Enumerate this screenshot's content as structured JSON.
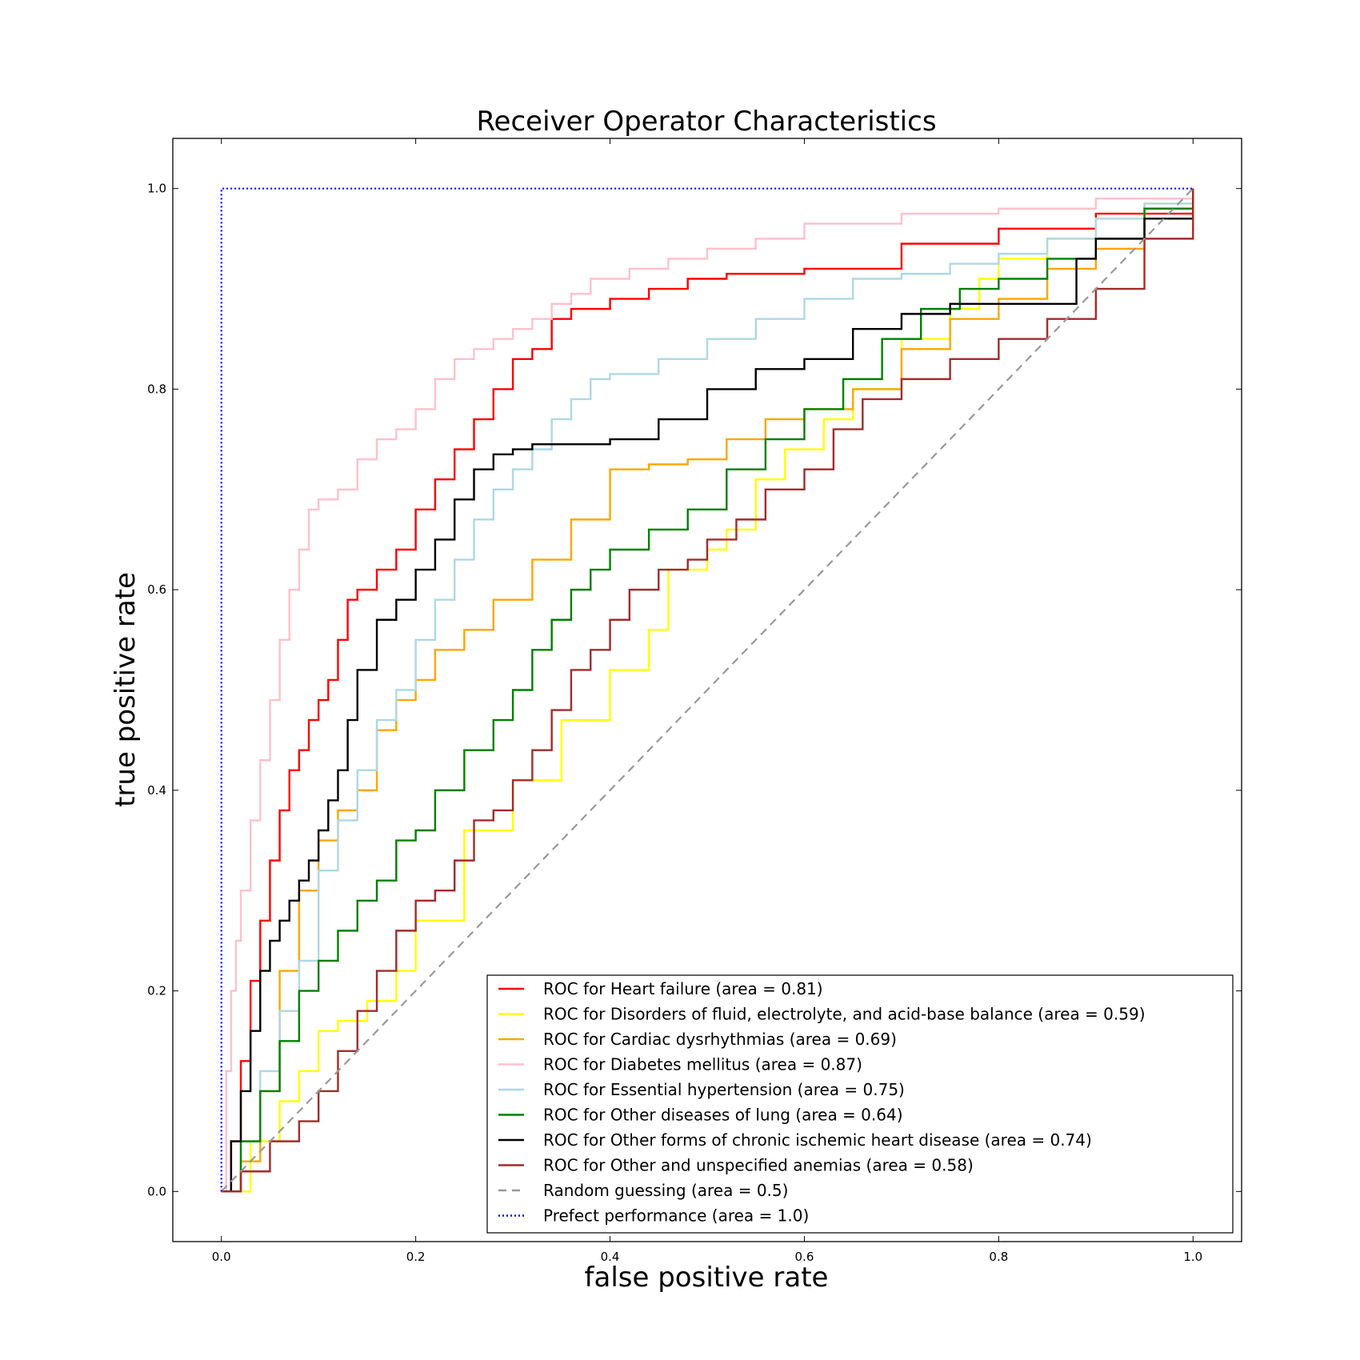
{
  "chart_data": {
    "type": "line",
    "title": "Receiver Operator Characteristics",
    "xlabel": "false positive rate",
    "ylabel": "true positive rate",
    "xlim": [
      -0.05,
      1.05
    ],
    "ylim": [
      -0.05,
      1.05
    ],
    "xticks": [
      "0.0",
      "0.2",
      "0.4",
      "0.6",
      "0.8",
      "1.0"
    ],
    "yticks": [
      "0.0",
      "0.2",
      "0.4",
      "0.6",
      "0.8",
      "1.0"
    ],
    "grid": false,
    "legend_position": "lower-right",
    "series": [
      {
        "name": "ROC for Heart failure (area = 0.81)",
        "color": "#ff0000",
        "style": "solid",
        "x": [
          0.0,
          0.01,
          0.02,
          0.03,
          0.04,
          0.05,
          0.06,
          0.07,
          0.08,
          0.09,
          0.1,
          0.11,
          0.12,
          0.13,
          0.14,
          0.16,
          0.18,
          0.2,
          0.22,
          0.24,
          0.26,
          0.28,
          0.3,
          0.32,
          0.34,
          0.36,
          0.4,
          0.44,
          0.48,
          0.52,
          0.6,
          0.7,
          0.8,
          0.9,
          1.0
        ],
        "y": [
          0.0,
          0.05,
          0.13,
          0.21,
          0.27,
          0.33,
          0.38,
          0.42,
          0.44,
          0.47,
          0.49,
          0.51,
          0.55,
          0.59,
          0.6,
          0.62,
          0.64,
          0.68,
          0.71,
          0.74,
          0.77,
          0.8,
          0.83,
          0.84,
          0.87,
          0.88,
          0.89,
          0.9,
          0.91,
          0.915,
          0.92,
          0.945,
          0.96,
          0.975,
          1.0
        ]
      },
      {
        "name": "ROC for Disorders of fluid, electrolyte, and acid-base balance (area = 0.59)",
        "color": "#ffff00",
        "style": "solid",
        "x": [
          0.0,
          0.03,
          0.06,
          0.08,
          0.1,
          0.12,
          0.15,
          0.18,
          0.2,
          0.25,
          0.3,
          0.35,
          0.4,
          0.44,
          0.46,
          0.5,
          0.52,
          0.55,
          0.58,
          0.62,
          0.65,
          0.7,
          0.75,
          0.78,
          0.8,
          0.85,
          0.9,
          0.95,
          1.0
        ],
        "y": [
          0.0,
          0.05,
          0.09,
          0.12,
          0.16,
          0.17,
          0.19,
          0.22,
          0.27,
          0.36,
          0.41,
          0.47,
          0.52,
          0.56,
          0.62,
          0.64,
          0.66,
          0.71,
          0.74,
          0.77,
          0.8,
          0.85,
          0.88,
          0.91,
          0.93,
          0.95,
          0.97,
          0.985,
          1.0
        ]
      },
      {
        "name": "ROC for Cardiac dysrhythmias (area = 0.69)",
        "color": "#ffa500",
        "style": "solid",
        "x": [
          0.0,
          0.02,
          0.04,
          0.06,
          0.08,
          0.1,
          0.12,
          0.14,
          0.16,
          0.18,
          0.2,
          0.22,
          0.25,
          0.28,
          0.32,
          0.36,
          0.4,
          0.44,
          0.48,
          0.52,
          0.56,
          0.6,
          0.65,
          0.7,
          0.75,
          0.8,
          0.85,
          0.9,
          0.95,
          1.0
        ],
        "y": [
          0.0,
          0.03,
          0.1,
          0.22,
          0.3,
          0.35,
          0.38,
          0.4,
          0.46,
          0.49,
          0.51,
          0.54,
          0.56,
          0.59,
          0.63,
          0.67,
          0.72,
          0.725,
          0.73,
          0.75,
          0.77,
          0.78,
          0.8,
          0.84,
          0.87,
          0.89,
          0.92,
          0.94,
          0.97,
          1.0
        ]
      },
      {
        "name": "ROC for Diabetes mellitus (area = 0.87)",
        "color": "#ffc0cb",
        "style": "solid",
        "x": [
          0.0,
          0.005,
          0.01,
          0.015,
          0.02,
          0.03,
          0.04,
          0.05,
          0.06,
          0.07,
          0.08,
          0.09,
          0.1,
          0.12,
          0.14,
          0.16,
          0.18,
          0.2,
          0.22,
          0.24,
          0.26,
          0.28,
          0.3,
          0.32,
          0.34,
          0.36,
          0.38,
          0.42,
          0.46,
          0.5,
          0.55,
          0.6,
          0.7,
          0.8,
          0.9,
          1.0
        ],
        "y": [
          0.0,
          0.12,
          0.2,
          0.25,
          0.3,
          0.37,
          0.43,
          0.49,
          0.55,
          0.6,
          0.64,
          0.68,
          0.69,
          0.7,
          0.73,
          0.75,
          0.76,
          0.78,
          0.81,
          0.83,
          0.84,
          0.85,
          0.86,
          0.87,
          0.885,
          0.895,
          0.91,
          0.92,
          0.93,
          0.94,
          0.95,
          0.965,
          0.975,
          0.98,
          0.99,
          1.0
        ]
      },
      {
        "name": "ROC for Essential hypertension (area = 0.75)",
        "color": "#add8e6",
        "style": "solid",
        "x": [
          0.0,
          0.02,
          0.04,
          0.06,
          0.08,
          0.1,
          0.12,
          0.14,
          0.16,
          0.18,
          0.2,
          0.22,
          0.24,
          0.26,
          0.28,
          0.3,
          0.32,
          0.34,
          0.36,
          0.38,
          0.4,
          0.45,
          0.5,
          0.55,
          0.6,
          0.65,
          0.7,
          0.75,
          0.8,
          0.85,
          0.9,
          0.95,
          1.0
        ],
        "y": [
          0.0,
          0.05,
          0.12,
          0.18,
          0.23,
          0.32,
          0.37,
          0.42,
          0.47,
          0.5,
          0.55,
          0.59,
          0.63,
          0.67,
          0.7,
          0.72,
          0.74,
          0.77,
          0.79,
          0.81,
          0.815,
          0.83,
          0.85,
          0.87,
          0.89,
          0.91,
          0.915,
          0.925,
          0.935,
          0.95,
          0.97,
          0.985,
          1.0
        ]
      },
      {
        "name": "ROC for Other diseases of lung (area = 0.64)",
        "color": "#008000",
        "style": "solid",
        "x": [
          0.0,
          0.02,
          0.04,
          0.06,
          0.08,
          0.1,
          0.12,
          0.14,
          0.16,
          0.18,
          0.2,
          0.22,
          0.25,
          0.28,
          0.3,
          0.32,
          0.34,
          0.36,
          0.38,
          0.4,
          0.44,
          0.48,
          0.52,
          0.56,
          0.6,
          0.64,
          0.68,
          0.72,
          0.76,
          0.8,
          0.85,
          0.9,
          0.95,
          1.0
        ],
        "y": [
          0.0,
          0.05,
          0.1,
          0.15,
          0.2,
          0.23,
          0.26,
          0.29,
          0.31,
          0.35,
          0.36,
          0.4,
          0.44,
          0.47,
          0.5,
          0.54,
          0.57,
          0.6,
          0.62,
          0.64,
          0.66,
          0.68,
          0.72,
          0.75,
          0.78,
          0.81,
          0.85,
          0.88,
          0.9,
          0.91,
          0.93,
          0.95,
          0.98,
          1.0
        ]
      },
      {
        "name": "ROC for Other forms of chronic ischemic heart disease (area = 0.74)",
        "color": "#000000",
        "style": "solid",
        "x": [
          0.0,
          0.01,
          0.02,
          0.03,
          0.04,
          0.05,
          0.06,
          0.07,
          0.08,
          0.09,
          0.1,
          0.11,
          0.12,
          0.13,
          0.14,
          0.16,
          0.18,
          0.2,
          0.22,
          0.24,
          0.26,
          0.28,
          0.3,
          0.32,
          0.36,
          0.4,
          0.45,
          0.5,
          0.55,
          0.6,
          0.65,
          0.7,
          0.75,
          0.8,
          0.85,
          0.88,
          0.9,
          0.95,
          1.0
        ],
        "y": [
          0.0,
          0.05,
          0.1,
          0.16,
          0.22,
          0.25,
          0.27,
          0.29,
          0.31,
          0.33,
          0.36,
          0.39,
          0.42,
          0.47,
          0.52,
          0.57,
          0.59,
          0.62,
          0.65,
          0.69,
          0.72,
          0.735,
          0.74,
          0.745,
          0.745,
          0.75,
          0.77,
          0.8,
          0.82,
          0.83,
          0.86,
          0.875,
          0.885,
          0.885,
          0.885,
          0.93,
          0.95,
          0.97,
          1.0
        ]
      },
      {
        "name": "ROC for Other and unspecified anemias (area = 0.58)",
        "color": "#a52a2a",
        "style": "solid",
        "x": [
          0.0,
          0.02,
          0.05,
          0.08,
          0.1,
          0.12,
          0.14,
          0.16,
          0.18,
          0.2,
          0.22,
          0.24,
          0.26,
          0.28,
          0.3,
          0.32,
          0.34,
          0.36,
          0.38,
          0.4,
          0.42,
          0.45,
          0.48,
          0.5,
          0.53,
          0.56,
          0.6,
          0.63,
          0.66,
          0.7,
          0.75,
          0.8,
          0.85,
          0.9,
          0.95,
          1.0
        ],
        "y": [
          0.0,
          0.02,
          0.05,
          0.07,
          0.1,
          0.14,
          0.18,
          0.22,
          0.26,
          0.29,
          0.3,
          0.33,
          0.37,
          0.38,
          0.41,
          0.44,
          0.48,
          0.52,
          0.54,
          0.57,
          0.6,
          0.62,
          0.63,
          0.65,
          0.67,
          0.7,
          0.72,
          0.76,
          0.79,
          0.81,
          0.83,
          0.85,
          0.87,
          0.9,
          0.95,
          1.0
        ]
      },
      {
        "name": "Random guessing (area = 0.5)",
        "color": "#999999",
        "style": "dashed",
        "x": [
          0.0,
          1.0
        ],
        "y": [
          0.0,
          1.0
        ]
      },
      {
        "name": "Prefect performance (area = 1.0)",
        "color": "#0000ff",
        "style": "dotted",
        "x": [
          0.0,
          0.0,
          1.0
        ],
        "y": [
          0.0,
          1.0,
          1.0
        ]
      }
    ]
  }
}
